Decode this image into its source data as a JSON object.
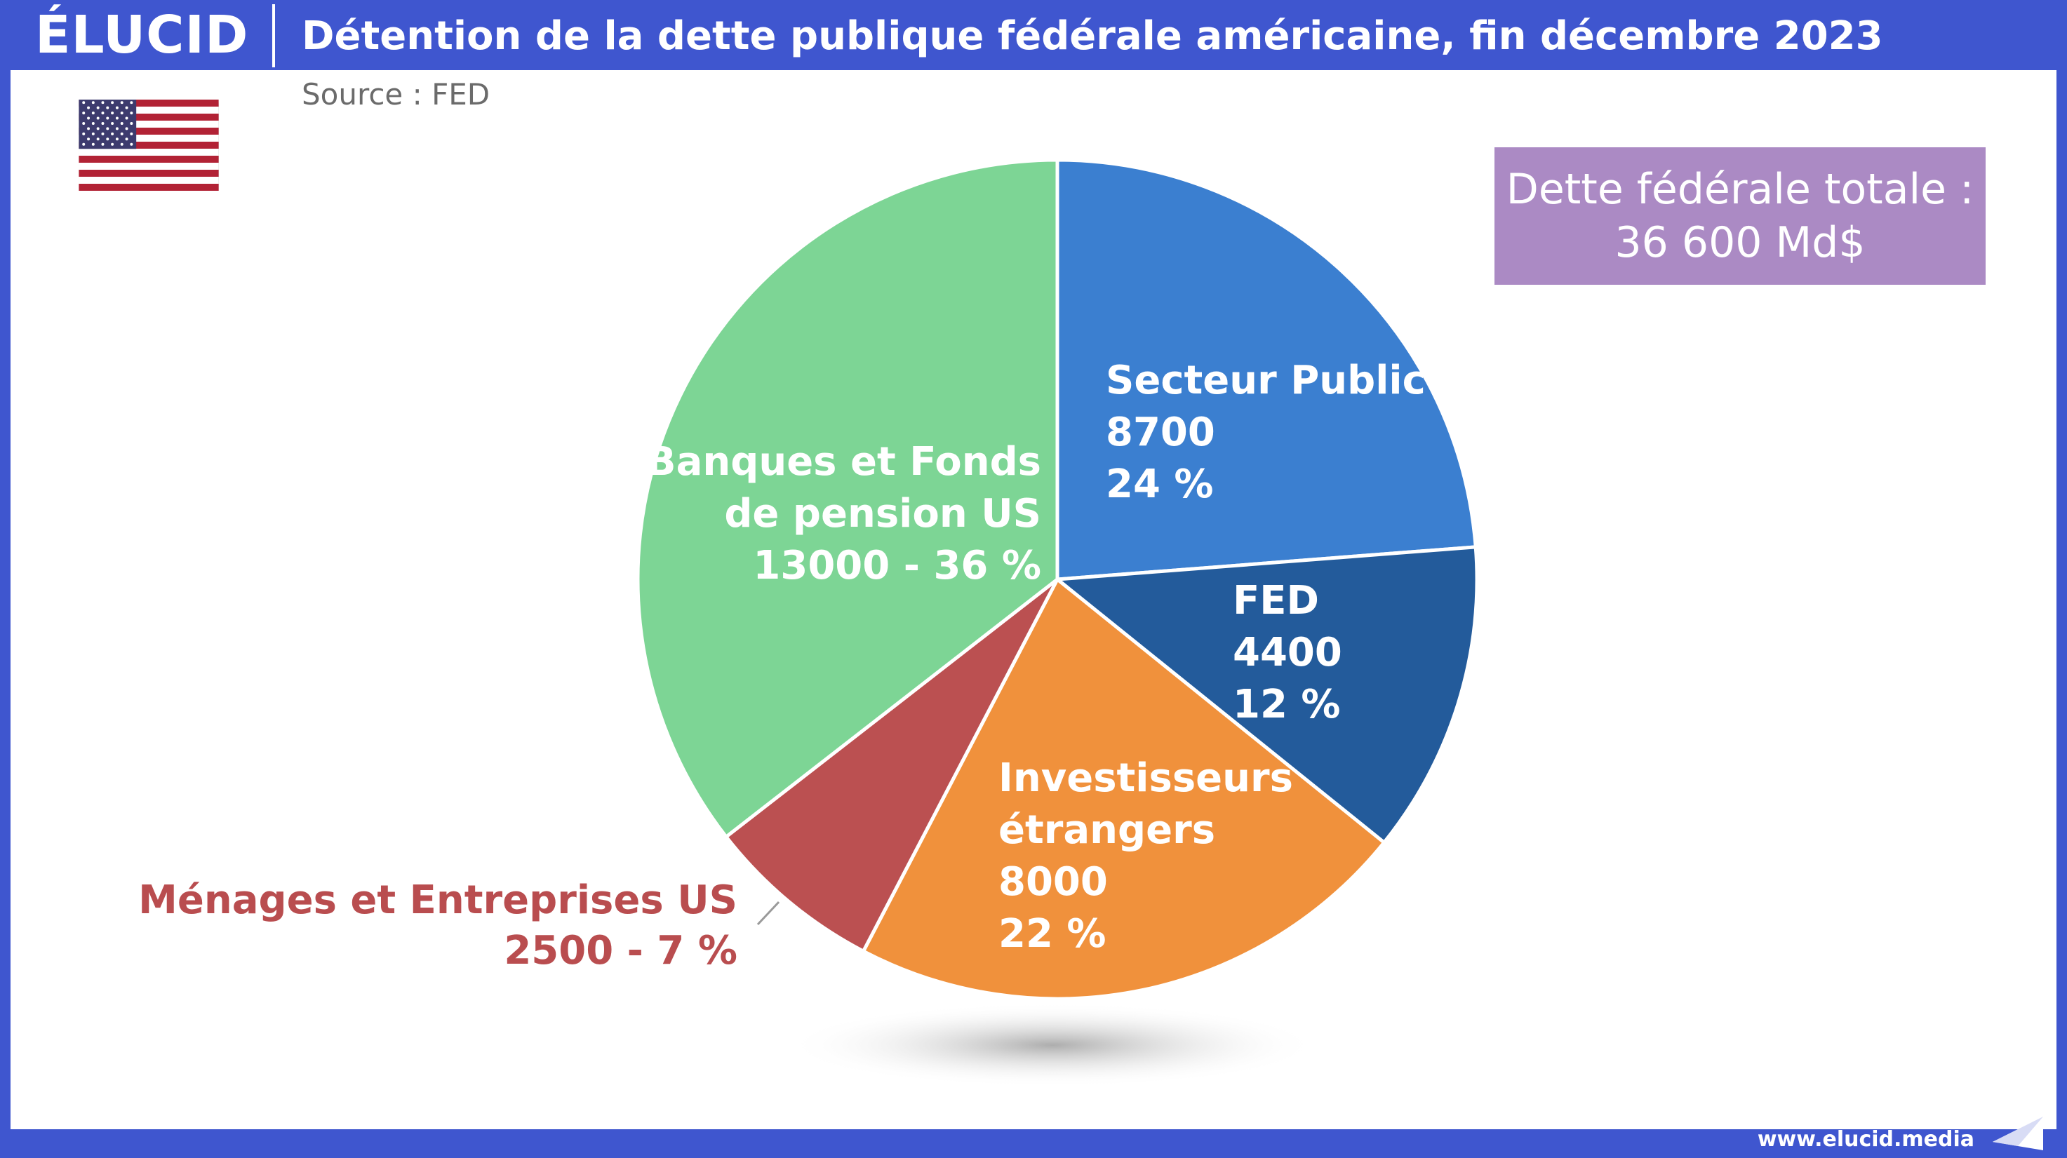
{
  "header": {
    "logo": "ÉLUCID",
    "title": "Détention de la dette publique fédérale américaine, fin décembre 2023",
    "source": "Source : FED"
  },
  "total_box": {
    "line1": "Dette fédérale totale :",
    "line2": "36 600 Md$"
  },
  "footer": {
    "site": "www.elucid.media"
  },
  "colors": {
    "frame": "#3f56cf",
    "secteur_public": "#3b7fd0",
    "fed": "#235b9b",
    "investisseurs": "#f0913c",
    "menages": "#bb5051",
    "banques": "#7dd595",
    "total_box": "#ab8ac4"
  },
  "chart_data": {
    "type": "pie",
    "title": "Détention de la dette publique fédérale américaine, fin décembre 2023",
    "unit": "Md$",
    "slices": [
      {
        "label_lines": [
          "Secteur Public"
        ],
        "value": "8700",
        "percent": "24 %",
        "amount": 8700,
        "pct": 24
      },
      {
        "label_lines": [
          "FED"
        ],
        "value": "4400",
        "percent": "12 %",
        "amount": 4400,
        "pct": 12
      },
      {
        "label_lines": [
          "Investisseurs",
          "étrangers"
        ],
        "value": "8000",
        "percent": "22 %",
        "amount": 8000,
        "pct": 22
      },
      {
        "label_lines": [
          "Ménages et Entreprises US"
        ],
        "value_pct": "2500 - 7 %",
        "amount": 2500,
        "pct": 7
      },
      {
        "label_lines": [
          "Banques et Fonds",
          "de pension US"
        ],
        "value_pct": "13000 - 36 %",
        "amount": 13000,
        "pct": 36
      }
    ]
  }
}
